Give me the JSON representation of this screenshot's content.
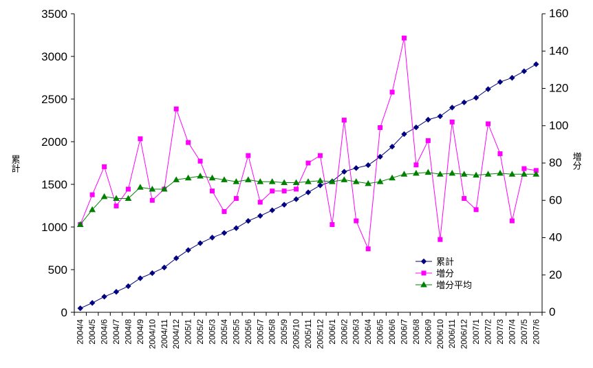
{
  "chart_data": {
    "type": "line",
    "categories": [
      "2004/4",
      "2004/5",
      "2004/6",
      "2004/7",
      "2004/8",
      "2004/9",
      "2004/10",
      "2004/11",
      "2004/12",
      "2005/1",
      "2005/2",
      "2005/3",
      "2005/4",
      "2005/5",
      "2005/6",
      "2005/7",
      "2005/8",
      "2005/9",
      "2005/10",
      "2005/11",
      "2005/12",
      "2006/1",
      "2006/2",
      "2006/3",
      "2006/4",
      "2006/5",
      "2006/6",
      "2006/7",
      "2006/8",
      "2006/9",
      "2006/10",
      "2006/11",
      "2006/12",
      "2007/1",
      "2007/2",
      "2007/3",
      "2007/4",
      "2007/5",
      "2007/6"
    ],
    "left_axis": {
      "label": "累計",
      "ylim": [
        0,
        3500
      ],
      "ticks": [
        0,
        500,
        1000,
        1500,
        2000,
        2500,
        3000,
        3500
      ]
    },
    "right_axis": {
      "label": "増分",
      "ylim": [
        0,
        160
      ],
      "ticks": [
        0,
        20,
        40,
        60,
        80,
        100,
        120,
        140,
        160
      ]
    },
    "grid": false,
    "legend_position": "bottom-right",
    "series": [
      {
        "name": "累計",
        "axis": "left",
        "color": "#000080",
        "marker": "diamond",
        "values": [
          47,
          110,
          183,
          240,
          306,
          399,
          459,
          525,
          634,
          729,
          810,
          876,
          930,
          987,
          1071,
          1131,
          1196,
          1261,
          1326,
          1406,
          1488,
          1535,
          1648,
          1691,
          1725,
          1824,
          1942,
          2089,
          2168,
          2258,
          2298,
          2400,
          2461,
          2515,
          2616,
          2700,
          2749,
          2826,
          2908
        ]
      },
      {
        "name": "増分",
        "axis": "right",
        "color": "#ff00ff",
        "marker": "square",
        "values": [
          47,
          63,
          78,
          57,
          66,
          93,
          60,
          66,
          109,
          91,
          81,
          65,
          54,
          61,
          84,
          59,
          65,
          65,
          66,
          80,
          84,
          47,
          103,
          49,
          34,
          99,
          118,
          147,
          79,
          92,
          39,
          102,
          61,
          55,
          101,
          85,
          49,
          77,
          76
        ]
      },
      {
        "name": "増分平均",
        "axis": "right",
        "color": "#008000",
        "marker": "triangle",
        "values": [
          47,
          55,
          62,
          61,
          61,
          67,
          66,
          66,
          71,
          72,
          73,
          72,
          71,
          70,
          71,
          70,
          70,
          69.5,
          69.5,
          70,
          70.5,
          70,
          71,
          70,
          69,
          70,
          72,
          74,
          74.5,
          75,
          74,
          74.5,
          74,
          73.5,
          74,
          74.5,
          74,
          74,
          74
        ]
      }
    ]
  }
}
